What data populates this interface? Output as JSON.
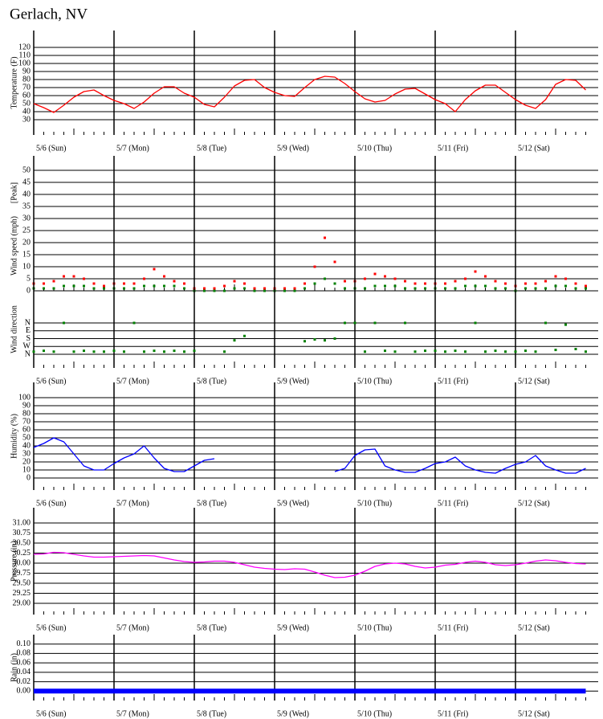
{
  "title": "Gerlach, NV",
  "chart_data": [
    {
      "type": "line",
      "ylabel": "Temperature (F)",
      "xlim": [
        0,
        7
      ],
      "ylim": [
        11,
        141
      ],
      "xticks": [
        {
          "value": 0,
          "label": "5/6 (Sun)"
        },
        {
          "value": 1,
          "label": "5/7 (Mon)"
        },
        {
          "value": 2,
          "label": "5/8 (Tue)"
        },
        {
          "value": 3,
          "label": "5/9 (Wed)"
        },
        {
          "value": 4,
          "label": "5/10 (Thu)"
        },
        {
          "value": 5,
          "label": "5/11 (Fri)"
        },
        {
          "value": 6,
          "label": "5/12 (Sat)"
        }
      ],
      "yticks": [
        30,
        40,
        50,
        60,
        70,
        80,
        90,
        100,
        110,
        120
      ],
      "x": [
        0,
        0.125,
        0.25,
        0.375,
        0.5,
        0.625,
        0.75,
        0.875,
        1,
        1.125,
        1.25,
        1.375,
        1.5,
        1.625,
        1.75,
        1.875,
        2,
        2.125,
        2.25,
        2.375,
        2.5,
        2.625,
        2.75,
        2.875,
        3,
        3.125,
        3.25,
        3.375,
        3.5,
        3.625,
        3.75,
        3.875,
        4,
        4.125,
        4.25,
        4.375,
        4.5,
        4.625,
        4.75,
        4.875,
        5,
        5.125,
        5.25,
        5.375,
        5.5,
        5.625,
        5.75,
        5.875,
        6,
        6.125,
        6.25,
        6.375,
        6.5,
        6.625,
        6.75,
        6.875
      ],
      "series": [
        {
          "color": "#ff0000",
          "values": [
            50,
            45,
            39,
            48,
            58,
            65,
            67,
            60,
            54,
            50,
            44,
            52,
            63,
            71,
            71,
            63,
            58,
            49,
            46,
            58,
            72,
            79,
            80,
            70,
            64,
            60,
            59,
            70,
            80,
            84,
            83,
            75,
            65,
            56,
            52,
            54,
            62,
            68,
            69,
            62,
            55,
            50,
            40,
            55,
            66,
            73,
            73,
            64,
            55,
            48,
            44,
            55,
            74,
            80,
            79,
            67
          ]
        }
      ]
    },
    {
      "type": "scatter",
      "ylabel": "Wind speed (mph)",
      "xlim": [
        0,
        7
      ],
      "ylim": [
        0,
        56
      ],
      "yticks": [
        0,
        5,
        10,
        15,
        20,
        25,
        30,
        35,
        40,
        45,
        50
      ],
      "x": [
        0,
        0.125,
        0.25,
        0.375,
        0.5,
        0.625,
        0.75,
        0.875,
        1,
        1.125,
        1.25,
        1.375,
        1.5,
        1.625,
        1.75,
        1.875,
        2,
        2.125,
        2.25,
        2.375,
        2.5,
        2.625,
        2.75,
        2.875,
        3,
        3.125,
        3.25,
        3.375,
        3.5,
        3.625,
        3.75,
        3.875,
        4,
        4.125,
        4.25,
        4.375,
        4.5,
        4.625,
        4.75,
        4.875,
        5,
        5.125,
        5.25,
        5.375,
        5.5,
        5.625,
        5.75,
        5.875,
        6,
        6.125,
        6.25,
        6.375,
        6.5,
        6.625,
        6.75,
        6.875
      ],
      "series": [
        {
          "name": "[Peak]",
          "color": "#ff0000",
          "values": [
            3,
            3,
            4,
            6,
            6,
            5,
            3,
            2,
            3,
            3,
            3,
            5,
            9,
            6,
            4,
            3,
            1,
            1,
            1,
            2,
            4,
            3,
            1,
            1,
            1,
            1,
            1,
            3,
            10,
            22,
            12,
            4,
            4,
            5,
            7,
            6,
            5,
            4,
            3,
            3,
            3,
            3,
            4,
            5,
            8,
            6,
            4,
            3,
            2,
            3,
            3,
            4,
            6,
            5,
            3,
            2
          ]
        },
        {
          "color": "#008000",
          "values": [
            1,
            1,
            1,
            2,
            2,
            2,
            1,
            1,
            1,
            1,
            1,
            2,
            2,
            2,
            2,
            1,
            0,
            0,
            0,
            0,
            1,
            1,
            0,
            0,
            0,
            0,
            0,
            1,
            3,
            5,
            3,
            1,
            1,
            1,
            2,
            2,
            2,
            1,
            1,
            1,
            1,
            1,
            1,
            2,
            2,
            2,
            1,
            1,
            0,
            1,
            1,
            1,
            2,
            2,
            1,
            1
          ]
        }
      ]
    },
    {
      "type": "scatter",
      "ylabel": "Wind direction",
      "invert_y": true,
      "xlim": [
        0,
        7
      ],
      "ylim": [
        -369,
        517
      ],
      "xticks": [
        {
          "value": 0,
          "label": "5/6 (Sun)"
        },
        {
          "value": 1,
          "label": "5/7 (Mon)"
        },
        {
          "value": 2,
          "label": "5/8 (Tue)"
        },
        {
          "value": 3,
          "label": "5/9 (Wed)"
        },
        {
          "value": 4,
          "label": "5/10 (Thu)"
        },
        {
          "value": 5,
          "label": "5/11 (Fri)"
        },
        {
          "value": 6,
          "label": "5/12 (Sat)"
        }
      ],
      "yticks": [
        {
          "value": 0,
          "label": "N"
        },
        {
          "value": 90,
          "label": "E"
        },
        {
          "value": 180,
          "label": "S"
        },
        {
          "value": 270,
          "label": "W"
        },
        {
          "value": 360,
          "label": "N"
        }
      ],
      "x": [
        0,
        0.125,
        0.25,
        0.375,
        0.5,
        0.625,
        0.75,
        0.875,
        1,
        1.125,
        1.25,
        1.375,
        1.5,
        1.625,
        1.75,
        1.875,
        2,
        2.125,
        2.25,
        2.375,
        2.5,
        2.625,
        2.75,
        2.875,
        3,
        3.125,
        3.25,
        3.375,
        3.5,
        3.625,
        3.75,
        3.875,
        4,
        4.125,
        4.25,
        4.375,
        4.5,
        4.625,
        4.75,
        4.875,
        5,
        5.125,
        5.25,
        5.375,
        5.5,
        5.625,
        5.75,
        5.875,
        6,
        6.125,
        6.25,
        6.375,
        6.5,
        6.625,
        6.75,
        6.875
      ],
      "series": [
        {
          "color": "#008000",
          "values": [
            330,
            320,
            330,
            0,
            330,
            320,
            330,
            330,
            320,
            330,
            0,
            330,
            320,
            330,
            320,
            330,
            320,
            null,
            null,
            330,
            200,
            150,
            null,
            null,
            null,
            null,
            null,
            210,
            190,
            200,
            180,
            0,
            0,
            330,
            0,
            320,
            330,
            0,
            330,
            320,
            320,
            330,
            320,
            330,
            0,
            330,
            320,
            330,
            330,
            320,
            330,
            0,
            310,
            20,
            300,
            330
          ]
        }
      ]
    },
    {
      "type": "line",
      "ylabel": "Humidity (%)",
      "xlim": [
        0,
        7
      ],
      "ylim": [
        -15,
        119
      ],
      "xticks": [
        {
          "value": 0,
          "label": "5/6 (Sun)"
        },
        {
          "value": 1,
          "label": "5/7 (Mon)"
        },
        {
          "value": 2,
          "label": "5/8 (Tue)"
        },
        {
          "value": 3,
          "label": "5/9 (Wed)"
        },
        {
          "value": 4,
          "label": "5/10 (Thu)"
        },
        {
          "value": 5,
          "label": "5/11 (Fri)"
        },
        {
          "value": 6,
          "label": "5/12 (Sat)"
        }
      ],
      "yticks": [
        0,
        10,
        20,
        30,
        40,
        50,
        60,
        70,
        80,
        90,
        100
      ],
      "x": [
        0,
        0.125,
        0.25,
        0.375,
        0.5,
        0.625,
        0.75,
        0.875,
        1,
        1.125,
        1.25,
        1.375,
        1.5,
        1.625,
        1.75,
        1.875,
        2,
        2.125,
        2.25,
        2.375,
        2.5,
        2.625,
        2.75,
        2.875,
        3,
        3.125,
        3.25,
        3.375,
        3.5,
        3.625,
        3.75,
        3.875,
        4,
        4.125,
        4.25,
        4.375,
        4.5,
        4.625,
        4.75,
        4.875,
        5,
        5.125,
        5.25,
        5.375,
        5.5,
        5.625,
        5.75,
        5.875,
        6,
        6.125,
        6.25,
        6.375,
        6.5,
        6.625,
        6.75,
        6.875
      ],
      "series": [
        {
          "color": "#0000ff",
          "values": [
            38,
            43,
            50,
            45,
            30,
            15,
            10,
            10,
            18,
            25,
            30,
            40,
            25,
            12,
            8,
            8,
            15,
            22,
            24,
            null,
            null,
            null,
            null,
            null,
            null,
            null,
            null,
            null,
            null,
            null,
            8,
            12,
            28,
            35,
            36,
            15,
            10,
            7,
            7,
            12,
            18,
            20,
            26,
            15,
            10,
            7,
            6,
            12,
            17,
            20,
            28,
            15,
            10,
            6,
            6,
            12
          ]
        }
      ]
    },
    {
      "type": "line",
      "ylabel": "Pressure (in)",
      "xlim": [
        0,
        7
      ],
      "ylim": [
        28.72,
        31.38
      ],
      "xticks": [
        {
          "value": 0,
          "label": "5/6 (Sun)"
        },
        {
          "value": 1,
          "label": "5/7 (Mon)"
        },
        {
          "value": 2,
          "label": "5/8 (Tue)"
        },
        {
          "value": 3,
          "label": "5/9 (Wed)"
        },
        {
          "value": 4,
          "label": "5/10 (Thu)"
        },
        {
          "value": 5,
          "label": "5/11 (Fri)"
        },
        {
          "value": 6,
          "label": "5/12 (Sat)"
        }
      ],
      "yticks": [
        {
          "value": 29,
          "label": "29.00"
        },
        {
          "value": 29.25,
          "label": "29.25"
        },
        {
          "value": 29.5,
          "label": "29.50"
        },
        {
          "value": 29.75,
          "label": "29.75"
        },
        {
          "value": 30,
          "label": "30.00"
        },
        {
          "value": 30.25,
          "label": "30.25"
        },
        {
          "value": 30.5,
          "label": "30.50"
        },
        {
          "value": 30.75,
          "label": "30.75"
        },
        {
          "value": 31,
          "label": "31.00"
        }
      ],
      "x": [
        0,
        0.125,
        0.25,
        0.375,
        0.5,
        0.625,
        0.75,
        0.875,
        1,
        1.125,
        1.25,
        1.375,
        1.5,
        1.625,
        1.75,
        1.875,
        2,
        2.125,
        2.25,
        2.375,
        2.5,
        2.625,
        2.75,
        2.875,
        3,
        3.125,
        3.25,
        3.375,
        3.5,
        3.625,
        3.75,
        3.875,
        4,
        4.125,
        4.25,
        4.375,
        4.5,
        4.625,
        4.75,
        4.875,
        5,
        5.125,
        5.25,
        5.375,
        5.5,
        5.625,
        5.75,
        5.875,
        6,
        6.125,
        6.25,
        6.375,
        6.5,
        6.625,
        6.75,
        6.875
      ],
      "series": [
        {
          "color": "#ff00ff",
          "values": [
            30.22,
            30.23,
            30.27,
            30.26,
            30.22,
            30.18,
            30.15,
            30.15,
            30.16,
            30.17,
            30.18,
            30.19,
            30.18,
            30.13,
            30.08,
            30.04,
            30.02,
            30.03,
            30.05,
            30.05,
            30.02,
            29.96,
            29.9,
            29.87,
            29.85,
            29.84,
            29.86,
            29.85,
            29.78,
            29.7,
            29.64,
            29.65,
            29.7,
            29.8,
            29.92,
            29.98,
            30,
            29.98,
            29.92,
            29.88,
            29.9,
            29.95,
            29.97,
            30.02,
            30.05,
            30.02,
            29.96,
            29.94,
            29.96,
            30,
            30.05,
            30.08,
            30.06,
            30.02,
            29.99,
            29.98
          ]
        }
      ]
    },
    {
      "type": "line",
      "ylabel": "Rain (in)",
      "xlim": [
        0,
        7
      ],
      "ylim": [
        -0.02,
        0.12
      ],
      "xticks": [
        {
          "value": 0,
          "label": "5/6 (Sun)"
        },
        {
          "value": 1,
          "label": "5/7 (Mon)"
        },
        {
          "value": 2,
          "label": "5/8 (Tue)"
        },
        {
          "value": 3,
          "label": "5/9 (Wed)"
        },
        {
          "value": 4,
          "label": "5/10 (Thu)"
        },
        {
          "value": 5,
          "label": "5/11 (Fri)"
        },
        {
          "value": 6,
          "label": "5/12 (Sat)"
        }
      ],
      "yticks": [
        {
          "value": 0,
          "label": "0.00"
        },
        {
          "value": 0.02,
          "label": "0.02"
        },
        {
          "value": 0.04,
          "label": "0.04"
        },
        {
          "value": 0.06,
          "label": "0.06"
        },
        {
          "value": 0.08,
          "label": "0.08"
        },
        {
          "value": 0.1,
          "label": "0.10"
        }
      ],
      "x": [
        0,
        0.125,
        0.25,
        0.375,
        0.5,
        0.625,
        0.75,
        0.875,
        1,
        1.125,
        1.25,
        1.375,
        1.5,
        1.625,
        1.75,
        1.875,
        2,
        2.125,
        2.25,
        2.375,
        2.5,
        2.625,
        2.75,
        2.875,
        3,
        3.125,
        3.25,
        3.375,
        3.5,
        3.625,
        3.75,
        3.875,
        4,
        4.125,
        4.25,
        4.375,
        4.5,
        4.625,
        4.75,
        4.875,
        5,
        5.125,
        5.25,
        5.375,
        5.5,
        5.625,
        5.75,
        5.875,
        6,
        6.125,
        6.25,
        6.375,
        6.5,
        6.625,
        6.75,
        6.875
      ],
      "series": [
        {
          "color": "#0000ff",
          "linewidth": 6,
          "values": [
            0,
            0,
            0,
            0,
            0,
            0,
            0,
            0,
            0,
            0,
            0,
            0,
            0,
            0,
            0,
            0,
            0,
            0,
            0,
            0,
            0,
            0,
            0,
            0,
            0,
            0,
            0,
            0,
            0,
            0,
            0,
            0,
            0,
            0,
            0,
            0,
            0,
            0,
            0,
            0,
            0,
            0,
            0,
            0,
            0,
            0,
            0,
            0,
            0,
            0,
            0,
            0,
            0,
            0,
            0,
            0
          ]
        }
      ]
    }
  ]
}
